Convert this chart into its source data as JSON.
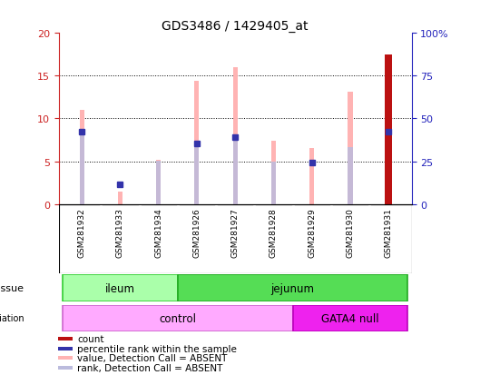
{
  "title": "GDS3486 / 1429405_at",
  "samples": [
    "GSM281932",
    "GSM281933",
    "GSM281934",
    "GSM281926",
    "GSM281927",
    "GSM281928",
    "GSM281929",
    "GSM281930",
    "GSM281931"
  ],
  "value_absent": [
    11.0,
    1.4,
    5.2,
    14.4,
    16.0,
    7.4,
    6.5,
    13.1,
    17.5
  ],
  "rank_absent": [
    8.5,
    null,
    5.1,
    7.1,
    7.8,
    5.0,
    null,
    6.7,
    null
  ],
  "count_value": [
    null,
    null,
    null,
    null,
    null,
    null,
    null,
    null,
    17.5
  ],
  "percentile_rank": [
    null,
    null,
    null,
    null,
    null,
    null,
    null,
    null,
    8.5
  ],
  "blue_dots": [
    8.5,
    2.3,
    null,
    7.1,
    7.8,
    null,
    4.8,
    null,
    8.5
  ],
  "ylim_left": [
    0,
    20
  ],
  "ylim_right": [
    0,
    100
  ],
  "yticks_left": [
    0,
    5,
    10,
    15,
    20
  ],
  "yticks_right": [
    0,
    25,
    50,
    75,
    100
  ],
  "ytick_right_labels": [
    "0",
    "25",
    "50",
    "75",
    "100%"
  ],
  "color_pink_bar": "#FFB3B3",
  "color_red_bar": "#BB1111",
  "color_blue_dot": "#3333AA",
  "color_lightblue_bar": "#BBBBDD",
  "color_ileum_light": "#AAFFAA",
  "color_ileum_dark": "#33CC33",
  "color_jejunum_light": "#55DD55",
  "color_jejunum_dark": "#22AA22",
  "color_control": "#FFAAFF",
  "color_gata4": "#EE22EE",
  "color_left_axis": "#CC2222",
  "color_right_axis": "#2222BB",
  "legend_items": [
    "count",
    "percentile rank within the sample",
    "value, Detection Call = ABSENT",
    "rank, Detection Call = ABSENT"
  ],
  "legend_colors": [
    "#BB1111",
    "#3333AA",
    "#FFB3B3",
    "#BBBBDD"
  ],
  "bar_width": 0.12
}
